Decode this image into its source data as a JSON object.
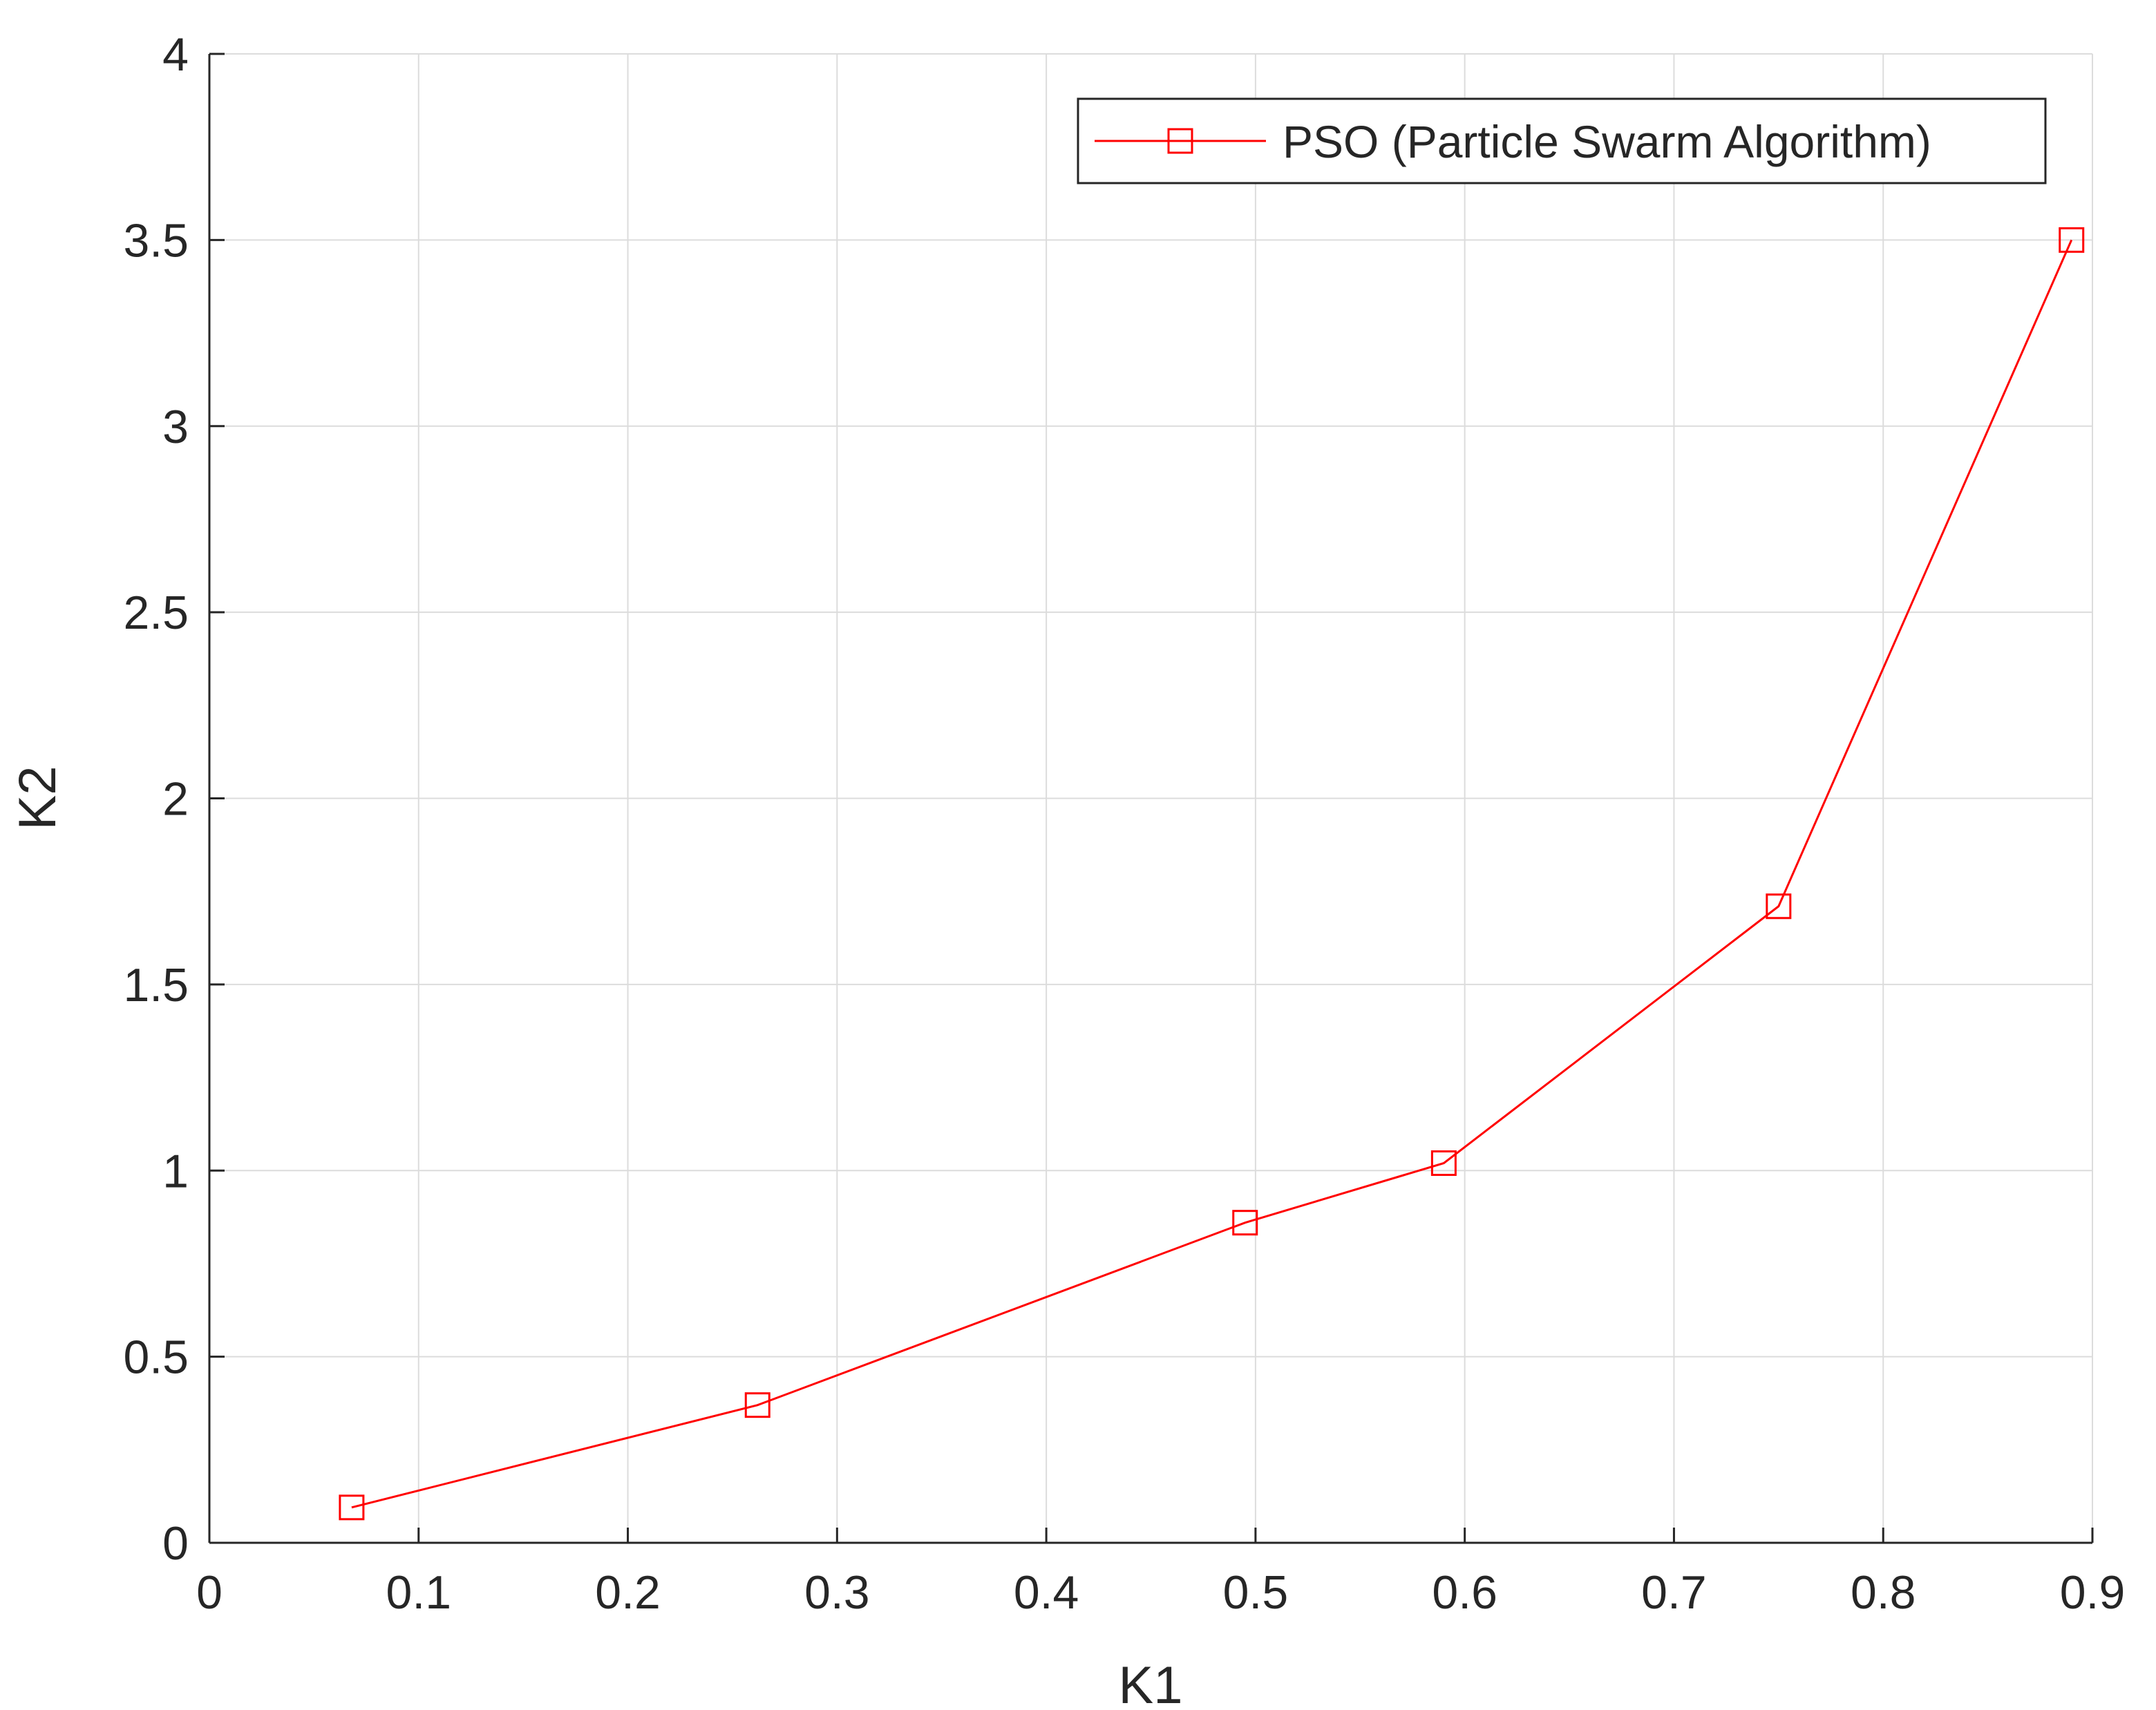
{
  "chart_data": {
    "type": "line",
    "title": "",
    "xlabel": "K1",
    "ylabel": "K2",
    "xlim": [
      0,
      0.9
    ],
    "ylim": [
      0,
      4
    ],
    "xticks": [
      0,
      0.1,
      0.2,
      0.3,
      0.4,
      0.5,
      0.6,
      0.7,
      0.8,
      0.9
    ],
    "xtick_labels": [
      "0",
      "0.1",
      "0.2",
      "0.3",
      "0.4",
      "0.5",
      "0.6",
      "0.7",
      "0.8",
      "0.9"
    ],
    "yticks": [
      0,
      0.5,
      1,
      1.5,
      2,
      2.5,
      3,
      3.5,
      4
    ],
    "ytick_labels": [
      "0",
      "0.5",
      "1",
      "1.5",
      "2",
      "2.5",
      "3",
      "3.5",
      "4"
    ],
    "grid": true,
    "legend_position": "top-right",
    "series": [
      {
        "name": "PSO (Particle Swarm Algorithm)",
        "color": "#ff0000",
        "marker": "square",
        "x": [
          0.068,
          0.262,
          0.495,
          0.59,
          0.75,
          0.89
        ],
        "y": [
          0.095,
          0.37,
          0.86,
          1.02,
          1.71,
          3.5
        ]
      }
    ]
  }
}
